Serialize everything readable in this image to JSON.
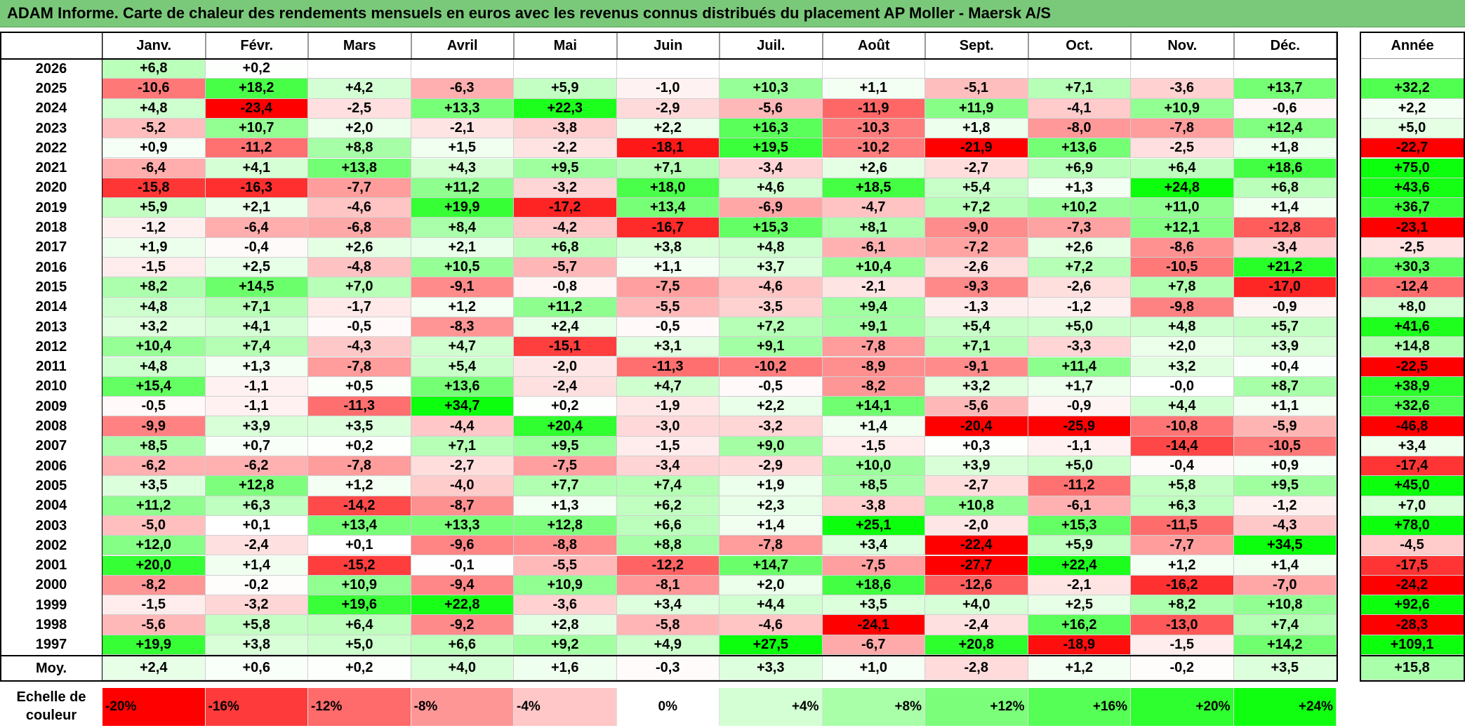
{
  "title": "ADAM Informe. Carte de chaleur des rendements mensuels en euros avec les revenus connus distribués du placement AP Moller - Maersk A/S",
  "chart_data": {
    "type": "heatmap",
    "title": "ADAM Informe. Carte de chaleur des rendements mensuels en euros avec les revenus connus distribués du placement AP Moller - Maersk A/S",
    "columns": [
      "Janv.",
      "Févr.",
      "Mars",
      "Avril",
      "Mai",
      "Juin",
      "Juil.",
      "Août",
      "Sept.",
      "Oct.",
      "Nov.",
      "Déc."
    ],
    "year_header": "Année",
    "rows": [
      {
        "year": "2026",
        "values": [
          "+6,8",
          "+0,2",
          "",
          "",
          "",
          "",
          "",
          "",
          "",
          "",
          "",
          ""
        ],
        "annual": ""
      },
      {
        "year": "2025",
        "values": [
          "-10,6",
          "+18,2",
          "+4,2",
          "-6,3",
          "+5,9",
          "-1,0",
          "+10,3",
          "+1,1",
          "-5,1",
          "+7,1",
          "-3,6",
          "+13,7"
        ],
        "annual": "+32,2"
      },
      {
        "year": "2024",
        "values": [
          "+4,8",
          "-23,4",
          "-2,5",
          "+13,3",
          "+22,3",
          "-2,9",
          "-5,6",
          "-11,9",
          "+11,9",
          "-4,1",
          "+10,9",
          "-0,6"
        ],
        "annual": "+2,2"
      },
      {
        "year": "2023",
        "values": [
          "-5,2",
          "+10,7",
          "+2,0",
          "-2,1",
          "-3,8",
          "+2,2",
          "+16,3",
          "-10,3",
          "+1,8",
          "-8,0",
          "-7,8",
          "+12,4"
        ],
        "annual": "+5,0"
      },
      {
        "year": "2022",
        "values": [
          "+0,9",
          "-11,2",
          "+8,8",
          "+1,5",
          "-2,2",
          "-18,1",
          "+19,5",
          "-10,2",
          "-21,9",
          "+13,6",
          "-2,5",
          "+1,8"
        ],
        "annual": "-22,7"
      },
      {
        "year": "2021",
        "values": [
          "-6,4",
          "+4,1",
          "+13,8",
          "+4,3",
          "+9,5",
          "+7,1",
          "-3,4",
          "+2,6",
          "-2,7",
          "+6,9",
          "+6,4",
          "+18,6"
        ],
        "annual": "+75,0"
      },
      {
        "year": "2020",
        "values": [
          "-15,8",
          "-16,3",
          "-7,7",
          "+11,2",
          "-3,2",
          "+18,0",
          "+4,6",
          "+18,5",
          "+5,4",
          "+1,3",
          "+24,8",
          "+6,8"
        ],
        "annual": "+43,6"
      },
      {
        "year": "2019",
        "values": [
          "+5,9",
          "+2,1",
          "-4,6",
          "+19,9",
          "-17,2",
          "+13,4",
          "-6,9",
          "-4,7",
          "+7,2",
          "+10,2",
          "+11,0",
          "+1,4"
        ],
        "annual": "+36,7"
      },
      {
        "year": "2018",
        "values": [
          "-1,2",
          "-6,4",
          "-6,8",
          "+8,4",
          "-4,2",
          "-16,7",
          "+15,3",
          "+8,1",
          "-9,0",
          "-7,3",
          "+12,1",
          "-12,8"
        ],
        "annual": "-23,1"
      },
      {
        "year": "2017",
        "values": [
          "+1,9",
          "-0,4",
          "+2,6",
          "+2,1",
          "+6,8",
          "+3,8",
          "+4,8",
          "-6,1",
          "-7,2",
          "+2,6",
          "-8,6",
          "-3,4"
        ],
        "annual": "-2,5"
      },
      {
        "year": "2016",
        "values": [
          "-1,5",
          "+2,5",
          "-4,8",
          "+10,5",
          "-5,7",
          "+1,1",
          "+3,7",
          "+10,4",
          "-2,6",
          "+7,2",
          "-10,5",
          "+21,2"
        ],
        "annual": "+30,3"
      },
      {
        "year": "2015",
        "values": [
          "+8,2",
          "+14,5",
          "+7,0",
          "-9,1",
          "-0,8",
          "-7,5",
          "-4,6",
          "-2,1",
          "-9,3",
          "-2,6",
          "+7,8",
          "-17,0"
        ],
        "annual": "-12,4"
      },
      {
        "year": "2014",
        "values": [
          "+4,8",
          "+7,1",
          "-1,7",
          "+1,2",
          "+11,2",
          "-5,5",
          "-3,5",
          "+9,4",
          "-1,3",
          "-1,2",
          "-9,8",
          "-0,9"
        ],
        "annual": "+8,0"
      },
      {
        "year": "2013",
        "values": [
          "+3,2",
          "+4,1",
          "-0,5",
          "-8,3",
          "+2,4",
          "-0,5",
          "+7,2",
          "+9,1",
          "+5,4",
          "+5,0",
          "+4,8",
          "+5,7"
        ],
        "annual": "+41,6"
      },
      {
        "year": "2012",
        "values": [
          "+10,4",
          "+7,4",
          "-4,3",
          "+4,7",
          "-15,1",
          "+3,1",
          "+9,1",
          "-7,8",
          "+7,1",
          "-3,3",
          "+2,0",
          "+3,9"
        ],
        "annual": "+14,8"
      },
      {
        "year": "2011",
        "values": [
          "+4,8",
          "+1,3",
          "-7,8",
          "+5,4",
          "-2,0",
          "-11,3",
          "-10,2",
          "-8,9",
          "-9,1",
          "+11,4",
          "+3,2",
          "+0,4"
        ],
        "annual": "-22,5"
      },
      {
        "year": "2010",
        "values": [
          "+15,4",
          "-1,1",
          "+0,5",
          "+13,6",
          "-2,4",
          "+4,7",
          "-0,5",
          "-8,2",
          "+3,2",
          "+1,7",
          "-0,0",
          "+8,7"
        ],
        "annual": "+38,9"
      },
      {
        "year": "2009",
        "values": [
          "-0,5",
          "-1,1",
          "-11,3",
          "+34,7",
          "+0,2",
          "-1,9",
          "+2,2",
          "+14,1",
          "-5,6",
          "-0,9",
          "+4,4",
          "+1,1"
        ],
        "annual": "+32,6"
      },
      {
        "year": "2008",
        "values": [
          "-9,9",
          "+3,9",
          "+3,5",
          "-4,4",
          "+20,4",
          "-3,0",
          "-3,2",
          "+1,4",
          "-20,4",
          "-25,9",
          "-10,8",
          "-5,9"
        ],
        "annual": "-46,8"
      },
      {
        "year": "2007",
        "values": [
          "+8,5",
          "+0,7",
          "+0,2",
          "+7,1",
          "+9,5",
          "-1,5",
          "+9,0",
          "-1,5",
          "+0,3",
          "-1,1",
          "-14,4",
          "-10,5"
        ],
        "annual": "+3,4"
      },
      {
        "year": "2006",
        "values": [
          "-6,2",
          "-6,2",
          "-7,8",
          "-2,7",
          "-7,5",
          "-3,4",
          "-2,9",
          "+10,0",
          "+3,9",
          "+5,0",
          "-0,4",
          "+0,9"
        ],
        "annual": "-17,4"
      },
      {
        "year": "2005",
        "values": [
          "+3,5",
          "+12,8",
          "+1,2",
          "-4,0",
          "+7,7",
          "+7,4",
          "+1,9",
          "+8,5",
          "-2,7",
          "-11,2",
          "+5,8",
          "+9,5"
        ],
        "annual": "+45,0"
      },
      {
        "year": "2004",
        "values": [
          "+11,2",
          "+6,3",
          "-14,2",
          "-8,7",
          "+1,3",
          "+6,2",
          "+2,3",
          "-3,8",
          "+10,8",
          "-6,1",
          "+6,3",
          "-1,2"
        ],
        "annual": "+7,0"
      },
      {
        "year": "2003",
        "values": [
          "-5,0",
          "+0,1",
          "+13,4",
          "+13,3",
          "+12,8",
          "+6,6",
          "+1,4",
          "+25,1",
          "-2,0",
          "+15,3",
          "-11,5",
          "-4,3"
        ],
        "annual": "+78,0"
      },
      {
        "year": "2002",
        "values": [
          "+12,0",
          "-2,4",
          "+0,1",
          "-9,6",
          "-8,8",
          "+8,8",
          "-7,8",
          "+3,4",
          "-22,4",
          "+5,9",
          "-7,7",
          "+34,5"
        ],
        "annual": "-4,5"
      },
      {
        "year": "2001",
        "values": [
          "+20,0",
          "+1,4",
          "-15,2",
          "-0,1",
          "-5,5",
          "-12,2",
          "+14,7",
          "-7,5",
          "-27,7",
          "+22,4",
          "+1,2",
          "+1,4"
        ],
        "annual": "-17,5"
      },
      {
        "year": "2000",
        "values": [
          "-8,2",
          "-0,2",
          "+10,9",
          "-9,4",
          "+10,9",
          "-8,1",
          "+2,0",
          "+18,6",
          "-12,6",
          "-2,1",
          "-16,2",
          "-7,0"
        ],
        "annual": "-24,2"
      },
      {
        "year": "1999",
        "values": [
          "-1,5",
          "-3,2",
          "+19,6",
          "+22,8",
          "-3,6",
          "+3,4",
          "+4,4",
          "+3,5",
          "+4,0",
          "+2,5",
          "+8,2",
          "+10,8"
        ],
        "annual": "+92,6"
      },
      {
        "year": "1998",
        "values": [
          "-5,6",
          "+5,8",
          "+6,4",
          "-9,2",
          "+2,8",
          "-5,8",
          "-4,6",
          "-24,1",
          "-2,4",
          "+16,2",
          "-13,0",
          "+7,4"
        ],
        "annual": "-28,3"
      },
      {
        "year": "1997",
        "values": [
          "+19,9",
          "+3,8",
          "+5,0",
          "+6,6",
          "+9,2",
          "+4,9",
          "+27,5",
          "-6,7",
          "+20,8",
          "-18,9",
          "-1,5",
          "+14,2"
        ],
        "annual": "+109,1"
      }
    ],
    "average": {
      "label": "Moy.",
      "values": [
        "+2,4",
        "+0,6",
        "+0,2",
        "+4,0",
        "+1,6",
        "-0,3",
        "+3,3",
        "+1,0",
        "-2,8",
        "+1,2",
        "-0,2",
        "+3,5"
      ],
      "annual": "+15,8"
    },
    "color_scale": {
      "label": "Echelle de couleur",
      "entries": [
        "-20%",
        "-16%",
        "-12%",
        "-8%",
        "-4%",
        "0%",
        "+4%",
        "+8%",
        "+12%",
        "+16%",
        "+20%",
        "+24%"
      ],
      "colors": [
        "#ff0000",
        "#ff3a3a",
        "#ff6a6a",
        "#ff9696",
        "#ffc7c7",
        "#ffffff",
        "#d4ffd4",
        "#a8ffa8",
        "#7bff7b",
        "#55ff55",
        "#2eff2e",
        "#10ff10"
      ]
    }
  }
}
